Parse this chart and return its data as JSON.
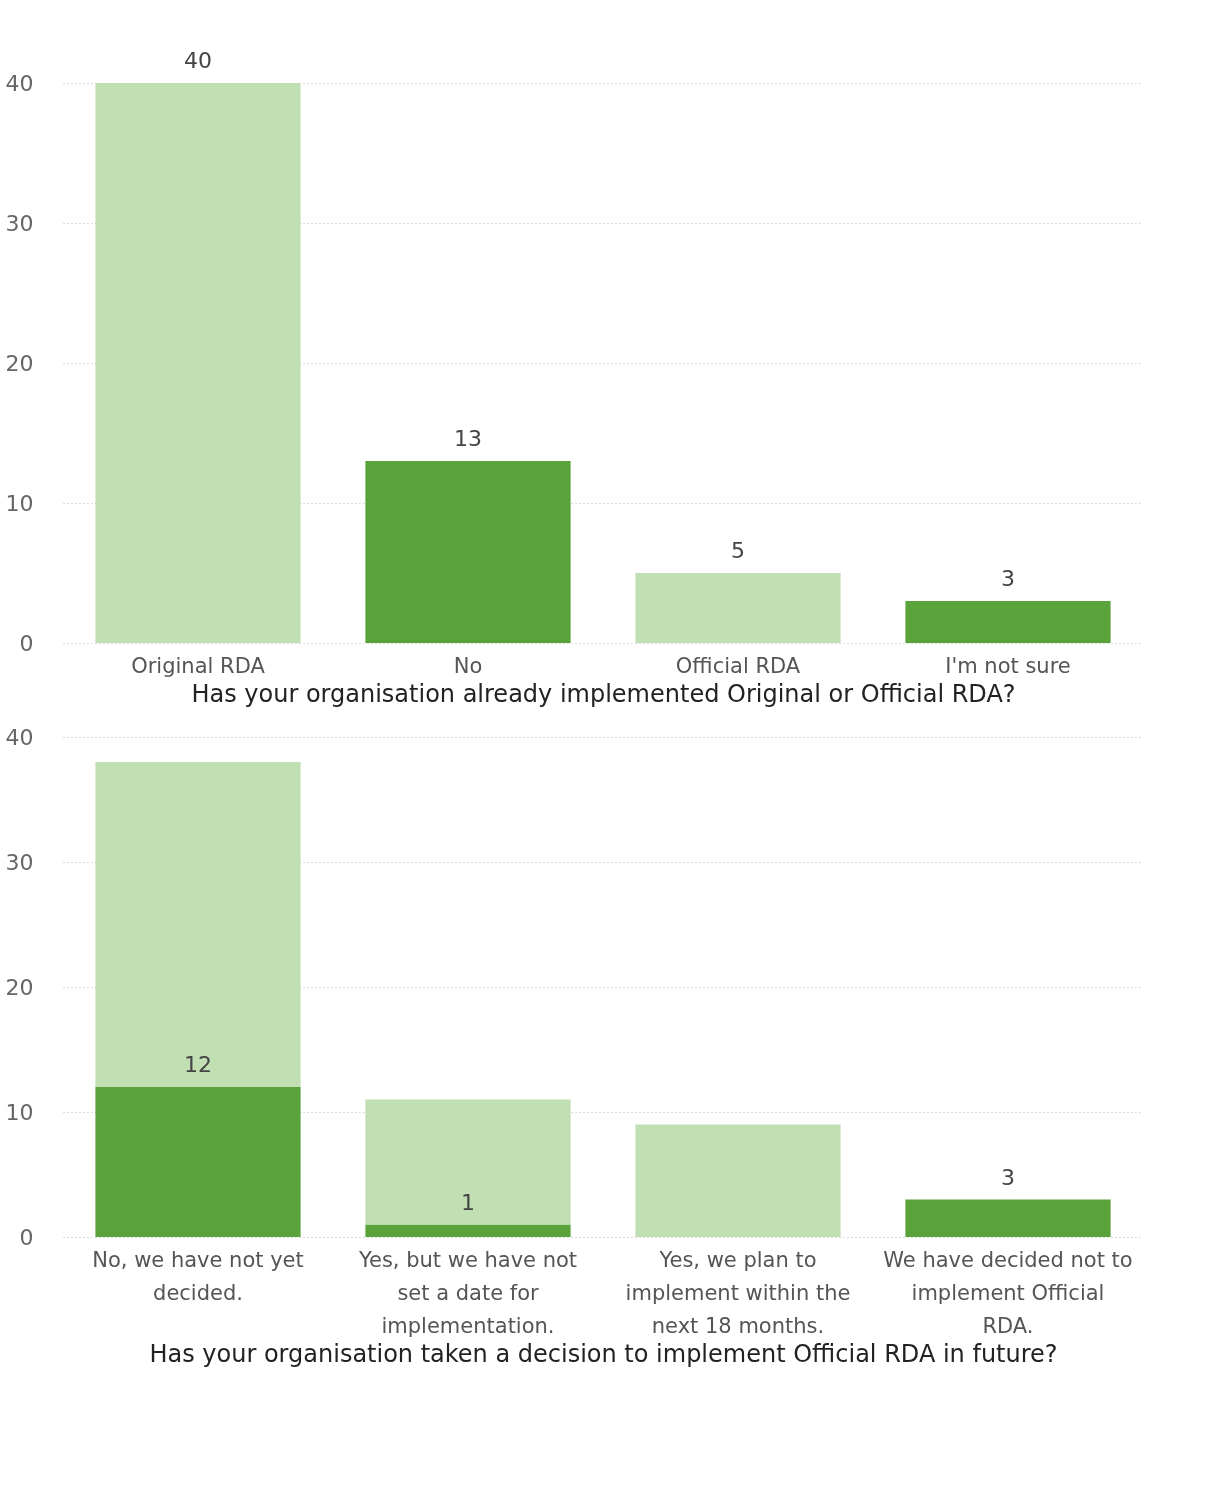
{
  "chart_data": [
    {
      "type": "bar",
      "xlabel": "Has your organisation already implemented Original or Official RDA?",
      "categories": [
        "Original RDA",
        "No",
        "Official RDA",
        "I'm not sure"
      ],
      "values": [
        40,
        13,
        5,
        3
      ],
      "colors": [
        "#c0e0b4",
        "#5aa23a",
        "#c0e0b4",
        "#5aa23a"
      ],
      "ylim": [
        0,
        40
      ],
      "yticks": [
        0,
        10,
        20,
        30,
        40
      ],
      "grid": "y",
      "data_labels": true
    },
    {
      "type": "bar",
      "xlabel": "Has your organisation taken a decision to implement Official RDA in future?",
      "categories": [
        "No, we have not yet decided.",
        "Yes, but we have not set a date for implementation.",
        "Yes, we plan to implement within the next 18 months.",
        "We have decided not to implement Official RDA."
      ],
      "stacked": true,
      "series": [
        {
          "color": "#5aa23a",
          "values": [
            12,
            1,
            null,
            3
          ],
          "value_labels": [
            "12",
            "1",
            null,
            "3"
          ]
        },
        {
          "color": "#c0e0b4",
          "values": [
            26,
            10,
            9,
            null
          ]
        }
      ],
      "ylim": [
        0,
        40
      ],
      "yticks": [
        0,
        10,
        20,
        30,
        40
      ],
      "grid": "y"
    }
  ]
}
